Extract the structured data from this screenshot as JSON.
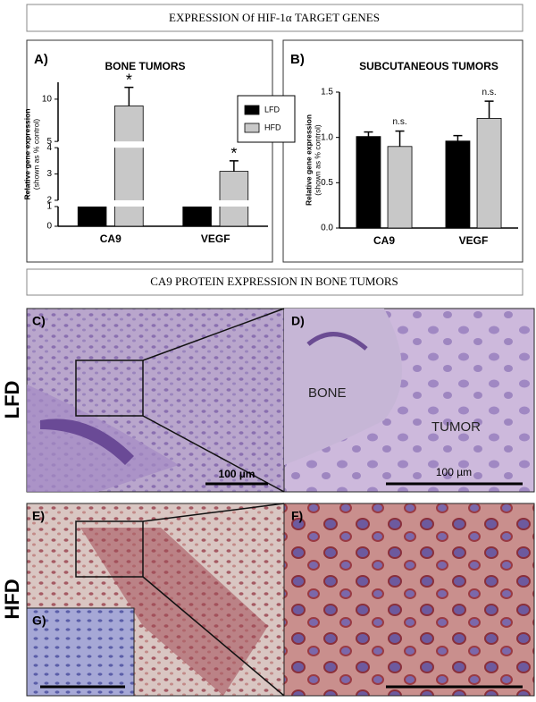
{
  "figure_title": "EXPRESSION Of HIF-1α TARGET GENES",
  "section_title": "CA9 PROTEIN EXPRESSION IN BONE TUMORS",
  "chart_data": [
    {
      "type": "bar",
      "panel_label": "A)",
      "title": "BONE TUMORS",
      "y_label": [
        "Relative gene expression",
        "(shown as % control)"
      ],
      "categories": [
        "CA9",
        "VEGF"
      ],
      "series": [
        {
          "name": "LFD",
          "color": "#000000",
          "values": [
            1,
            1
          ]
        },
        {
          "name": "HFD",
          "color": "#c8c8c8",
          "values": [
            9.2,
            3.1
          ],
          "errors": [
            2.2,
            0.4
          ],
          "annotations": [
            "*",
            "*"
          ]
        }
      ],
      "ylim": [
        0,
        12
      ],
      "yticks": [
        0,
        1,
        2,
        3,
        4,
        5,
        10
      ],
      "y_breaks": [
        [
          1,
          2
        ],
        [
          4,
          5
        ]
      ],
      "legend": "top-right"
    },
    {
      "type": "bar",
      "panel_label": "B)",
      "title": "SUBCUTANEOUS TUMORS",
      "y_label": [
        "Relative gene expression",
        "(shown as % control)"
      ],
      "categories": [
        "CA9",
        "VEGF"
      ],
      "series": [
        {
          "name": "LFD",
          "color": "#000000",
          "values": [
            1.01,
            0.96
          ],
          "errors": [
            0.05,
            0.06
          ]
        },
        {
          "name": "HFD",
          "color": "#c8c8c8",
          "values": [
            0.9,
            1.21
          ],
          "errors": [
            0.17,
            0.19
          ],
          "annotations": [
            "n.s.",
            "n.s."
          ]
        }
      ],
      "ylim": [
        0,
        1.5
      ],
      "yticks": [
        {
          "value": 0,
          "label": "0.0"
        },
        {
          "value": 0.5,
          "label": "0.5"
        },
        {
          "value": 1,
          "label": "1.0"
        },
        {
          "value": 1.5,
          "label": "1.5"
        }
      ]
    }
  ],
  "panels": {
    "c": "C)",
    "d": "D)",
    "e": "E)",
    "f": "F)",
    "g": "G)"
  },
  "row_labels": [
    "LFD",
    "HFD"
  ],
  "tissue_labels": {
    "bone": "BONE",
    "tumor": "TUMOR"
  },
  "scale_bars": [
    "100 µm",
    "100 µm"
  ]
}
